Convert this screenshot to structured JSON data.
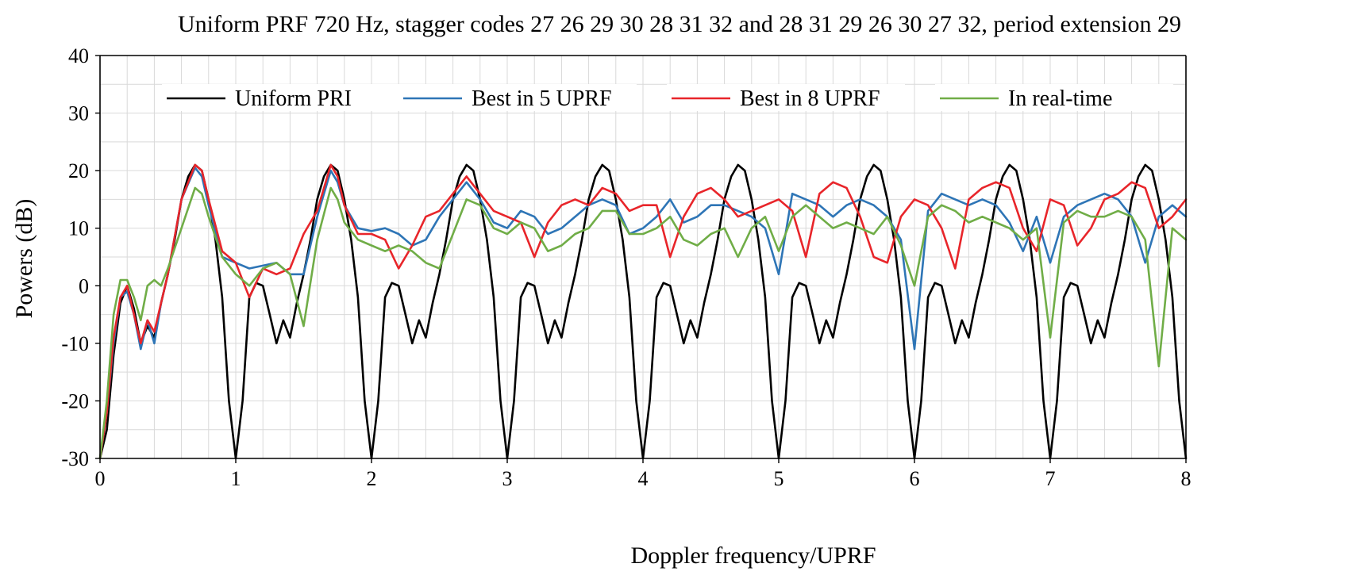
{
  "chart_data": {
    "type": "line",
    "title": "Uniform PRF 720 Hz, stagger codes 27 26 29 30 28 31 32 and 28 31 29 26 30 27 32, period extension 29",
    "xlabel": "Doppler frequency/UPRF",
    "ylabel": "Powers (dB)",
    "xlim": [
      0,
      8
    ],
    "ylim": [
      -30,
      40
    ],
    "x_ticks": [
      "0",
      "1",
      "2",
      "3",
      "4",
      "5",
      "6",
      "7",
      "8"
    ],
    "y_ticks": [
      "-30",
      "-20",
      "-10",
      "0",
      "10",
      "20",
      "30",
      "40"
    ],
    "grid": true,
    "legend_position": "top",
    "series": [
      {
        "name": "Uniform PRI",
        "color": "#000000",
        "x": [
          0,
          0.05,
          0.1,
          0.15,
          0.2,
          0.25,
          0.3,
          0.35,
          0.4,
          0.45,
          0.5,
          0.55,
          0.6,
          0.65,
          0.7,
          0.75,
          0.8,
          0.85,
          0.9,
          0.95,
          1.0,
          1.05,
          1.1,
          1.15,
          1.2,
          1.25,
          1.3,
          1.35,
          1.4,
          1.45,
          1.5,
          1.55,
          1.6,
          1.65,
          1.7,
          1.75,
          1.8,
          1.85,
          1.9,
          1.95,
          2.0,
          2.05,
          2.1,
          2.15,
          2.2,
          2.25,
          2.3,
          2.35,
          2.4,
          2.45,
          2.5,
          2.55,
          2.6,
          2.65,
          2.7,
          2.75,
          2.8,
          2.85,
          2.9,
          2.95,
          3.0,
          3.05,
          3.1,
          3.15,
          3.2,
          3.25,
          3.3,
          3.35,
          3.4,
          3.45,
          3.5,
          3.55,
          3.6,
          3.65,
          3.7,
          3.75,
          3.8,
          3.85,
          3.9,
          3.95,
          4.0,
          4.05,
          4.1,
          4.15,
          4.2,
          4.25,
          4.3,
          4.35,
          4.4,
          4.45,
          4.5,
          4.55,
          4.6,
          4.65,
          4.7,
          4.75,
          4.8,
          4.85,
          4.9,
          4.95,
          5.0,
          5.05,
          5.1,
          5.15,
          5.2,
          5.25,
          5.3,
          5.35,
          5.4,
          5.45,
          5.5,
          5.55,
          5.6,
          5.65,
          5.7,
          5.75,
          5.8,
          5.85,
          5.9,
          5.95,
          6.0,
          6.05,
          6.1,
          6.15,
          6.2,
          6.25,
          6.3,
          6.35,
          6.4,
          6.45,
          6.5,
          6.55,
          6.6,
          6.65,
          6.7,
          6.75,
          6.8,
          6.85,
          6.9,
          6.95,
          7.0,
          7.05,
          7.1,
          7.15,
          7.2,
          7.25,
          7.3,
          7.35,
          7.4,
          7.45,
          7.5,
          7.55,
          7.6,
          7.65,
          7.7,
          7.75,
          7.8,
          7.85,
          7.9,
          7.95,
          8.0
        ],
        "values": [
          -30,
          -25,
          -12,
          -3,
          0,
          -4,
          -10,
          -7,
          -9,
          -3,
          2,
          8,
          15,
          19,
          21,
          20,
          15,
          8,
          -2,
          -20,
          -30,
          -20,
          -2,
          0.5,
          0,
          -5,
          -10,
          -6,
          -9,
          -3,
          2,
          8,
          15,
          19,
          21,
          20,
          15,
          8,
          -2,
          -20,
          -30,
          -20,
          -2,
          0.5,
          0,
          -5,
          -10,
          -6,
          -9,
          -3,
          2,
          8,
          15,
          19,
          21,
          20,
          15,
          8,
          -2,
          -20,
          -30,
          -20,
          -2,
          0.5,
          0,
          -5,
          -10,
          -6,
          -9,
          -3,
          2,
          8,
          15,
          19,
          21,
          20,
          15,
          8,
          -2,
          -20,
          -30,
          -20,
          -2,
          0.5,
          0,
          -5,
          -10,
          -6,
          -9,
          -3,
          2,
          8,
          15,
          19,
          21,
          20,
          15,
          8,
          -2,
          -20,
          -30,
          -20,
          -2,
          0.5,
          0,
          -5,
          -10,
          -6,
          -9,
          -3,
          2,
          8,
          15,
          19,
          21,
          20,
          15,
          8,
          -2,
          -20,
          -30,
          -20,
          -2,
          0.5,
          0,
          -5,
          -10,
          -6,
          -9,
          -3,
          2,
          8,
          15,
          19,
          21,
          20,
          15,
          8,
          -2,
          -20,
          -30,
          -20,
          -2,
          0.5,
          0,
          -5,
          -10,
          -6,
          -9,
          -3,
          2,
          8,
          15,
          19,
          21,
          20,
          15,
          8,
          -2,
          -20,
          -30
        ]
      },
      {
        "name": "Best in 5 UPRF",
        "color": "#2e75b6",
        "x": [
          0,
          0.05,
          0.1,
          0.15,
          0.2,
          0.25,
          0.3,
          0.35,
          0.4,
          0.45,
          0.5,
          0.6,
          0.7,
          0.75,
          0.8,
          0.9,
          1.0,
          1.1,
          1.2,
          1.3,
          1.4,
          1.5,
          1.6,
          1.7,
          1.75,
          1.8,
          1.9,
          2.0,
          2.1,
          2.2,
          2.3,
          2.4,
          2.5,
          2.6,
          2.7,
          2.8,
          2.9,
          3.0,
          3.1,
          3.2,
          3.3,
          3.4,
          3.5,
          3.6,
          3.7,
          3.8,
          3.9,
          4.0,
          4.1,
          4.2,
          4.3,
          4.4,
          4.5,
          4.6,
          4.7,
          4.8,
          4.9,
          5.0,
          5.1,
          5.2,
          5.3,
          5.4,
          5.5,
          5.6,
          5.7,
          5.8,
          5.9,
          6.0,
          6.1,
          6.2,
          6.3,
          6.4,
          6.5,
          6.6,
          6.7,
          6.8,
          6.9,
          7.0,
          7.1,
          7.2,
          7.3,
          7.4,
          7.5,
          7.6,
          7.7,
          7.8,
          7.9,
          8.0
        ],
        "values": [
          -30,
          -22,
          -10,
          -2,
          -1,
          -5,
          -11,
          -6,
          -10,
          -3,
          2,
          15,
          20.5,
          19,
          14,
          5,
          4,
          3,
          3.5,
          4,
          2,
          2,
          12,
          20,
          18,
          14,
          10,
          9.5,
          10,
          9,
          7,
          8,
          12,
          15,
          18,
          15,
          11,
          10,
          13,
          12,
          9,
          10,
          12,
          14,
          15,
          14,
          9,
          10,
          12,
          15,
          11,
          12,
          14,
          14,
          13,
          12,
          10,
          2,
          16,
          15,
          14,
          12,
          14,
          15,
          14,
          12,
          8,
          -11,
          13,
          16,
          15,
          14,
          15,
          14,
          11,
          6,
          12,
          4,
          12,
          14,
          15,
          16,
          15,
          12,
          4,
          12,
          14,
          12
        ]
      },
      {
        "name": "Best in 8 UPRF",
        "color": "#e8252a",
        "x": [
          0,
          0.05,
          0.1,
          0.15,
          0.2,
          0.25,
          0.3,
          0.35,
          0.4,
          0.45,
          0.5,
          0.6,
          0.7,
          0.75,
          0.8,
          0.9,
          1.0,
          1.1,
          1.2,
          1.3,
          1.4,
          1.5,
          1.6,
          1.7,
          1.75,
          1.8,
          1.9,
          2.0,
          2.1,
          2.2,
          2.3,
          2.4,
          2.5,
          2.6,
          2.7,
          2.8,
          2.9,
          3.0,
          3.1,
          3.2,
          3.3,
          3.4,
          3.5,
          3.6,
          3.7,
          3.8,
          3.9,
          4.0,
          4.1,
          4.2,
          4.3,
          4.4,
          4.5,
          4.6,
          4.7,
          4.8,
          4.9,
          5.0,
          5.1,
          5.2,
          5.3,
          5.4,
          5.5,
          5.6,
          5.7,
          5.8,
          5.9,
          6.0,
          6.1,
          6.2,
          6.3,
          6.4,
          6.5,
          6.6,
          6.7,
          6.8,
          6.9,
          7.0,
          7.1,
          7.2,
          7.3,
          7.4,
          7.5,
          7.6,
          7.7,
          7.8,
          7.9,
          8.0
        ],
        "values": [
          -30,
          -22,
          -9,
          -2,
          0,
          -5,
          -10,
          -6,
          -8,
          -3,
          2,
          15,
          21,
          20,
          15,
          6,
          4,
          -2,
          3,
          2,
          3,
          9,
          13,
          21,
          19,
          14,
          9,
          9,
          8,
          3,
          7,
          12,
          13,
          16,
          19,
          16,
          13,
          12,
          11,
          5,
          11,
          14,
          15,
          14,
          17,
          16,
          13,
          14,
          14,
          5,
          12,
          16,
          17,
          15,
          12,
          13,
          14,
          15,
          13,
          5,
          16,
          18,
          17,
          12,
          5,
          4,
          12,
          15,
          14,
          10,
          3,
          15,
          17,
          18,
          17,
          10,
          6,
          15,
          14,
          7,
          10,
          15,
          16,
          18,
          17,
          10,
          12,
          15
        ]
      },
      {
        "name": "In real-time",
        "color": "#70ad47",
        "x": [
          0,
          0.05,
          0.1,
          0.15,
          0.2,
          0.25,
          0.3,
          0.35,
          0.4,
          0.45,
          0.5,
          0.6,
          0.7,
          0.75,
          0.8,
          0.9,
          1.0,
          1.1,
          1.2,
          1.3,
          1.4,
          1.5,
          1.6,
          1.7,
          1.75,
          1.8,
          1.9,
          2.0,
          2.1,
          2.2,
          2.3,
          2.4,
          2.5,
          2.6,
          2.7,
          2.8,
          2.9,
          3.0,
          3.1,
          3.2,
          3.3,
          3.4,
          3.5,
          3.6,
          3.7,
          3.8,
          3.9,
          4.0,
          4.1,
          4.2,
          4.3,
          4.4,
          4.5,
          4.6,
          4.7,
          4.8,
          4.9,
          5.0,
          5.1,
          5.2,
          5.3,
          5.4,
          5.5,
          5.6,
          5.7,
          5.8,
          5.9,
          6.0,
          6.1,
          6.2,
          6.3,
          6.4,
          6.5,
          6.6,
          6.7,
          6.8,
          6.9,
          7.0,
          7.1,
          7.2,
          7.3,
          7.4,
          7.5,
          7.6,
          7.7,
          7.8,
          7.9,
          8.0
        ],
        "values": [
          -30,
          -20,
          -5,
          1,
          1,
          -2,
          -6,
          0,
          1,
          0,
          3,
          10,
          17,
          16,
          12,
          5,
          2,
          0,
          3,
          4,
          2,
          -7,
          8,
          17,
          15,
          11,
          8,
          7,
          6,
          7,
          6,
          4,
          3,
          9,
          15,
          14,
          10,
          9,
          11,
          10,
          6,
          7,
          9,
          10,
          13,
          13,
          9,
          9,
          10,
          12,
          8,
          7,
          9,
          10,
          5,
          10,
          12,
          6,
          12,
          14,
          12,
          10,
          11,
          10,
          9,
          12,
          7,
          0,
          12,
          14,
          13,
          11,
          12,
          11,
          10,
          8,
          10,
          -9,
          11,
          13,
          12,
          12,
          13,
          12,
          8,
          -14,
          10,
          8
        ]
      }
    ]
  }
}
